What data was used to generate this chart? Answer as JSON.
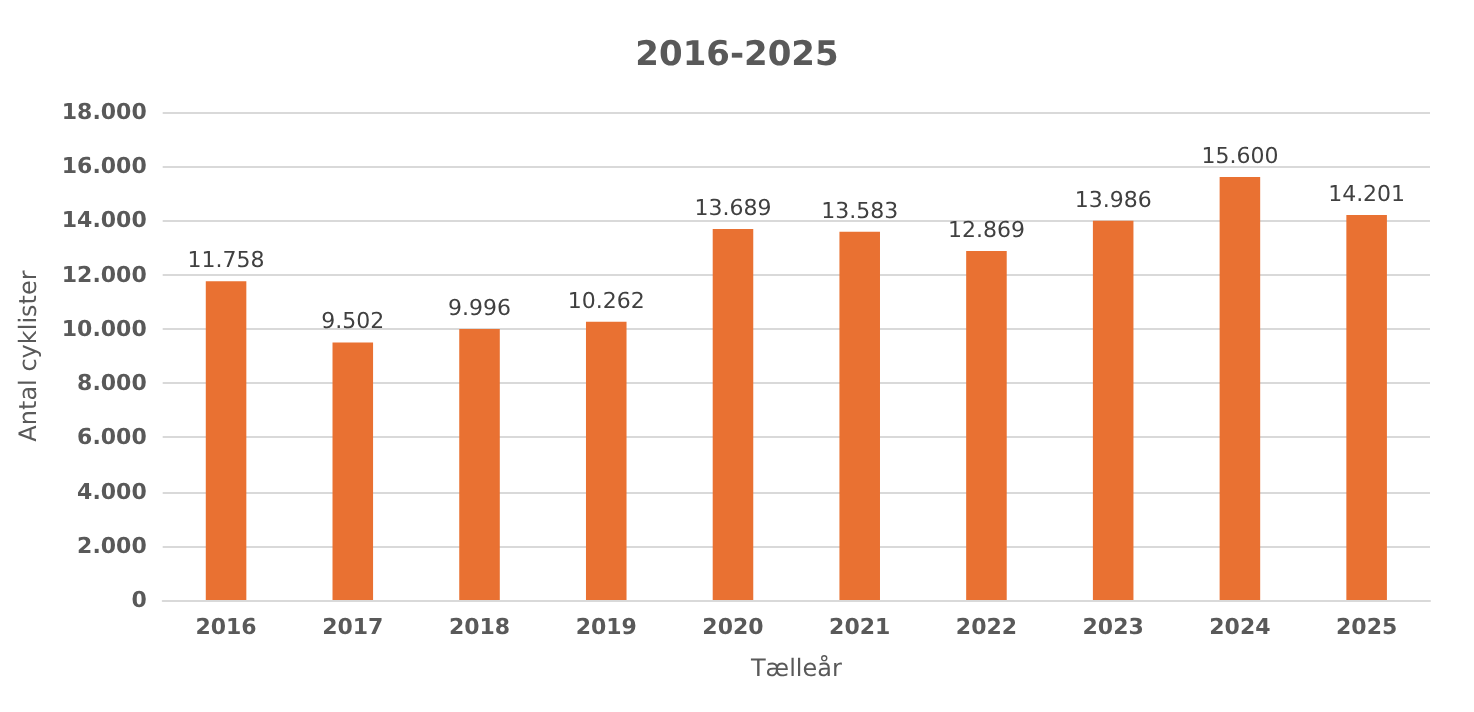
{
  "chart_data": {
    "type": "bar",
    "title": "2016-2025",
    "xlabel": "Tælleår",
    "ylabel": "Antal cyklister",
    "categories": [
      "2016",
      "2017",
      "2018",
      "2019",
      "2020",
      "2021",
      "2022",
      "2023",
      "2024",
      "2025"
    ],
    "series": [
      {
        "color": "#e97132",
        "values": [
          11758,
          9502,
          9996,
          10262,
          13689,
          13583,
          12869,
          13986,
          15600,
          14201
        ],
        "value_labels": [
          "11.758",
          "9.502",
          "9.996",
          "10.262",
          "13.689",
          "13.583",
          "12.869",
          "13.986",
          "15.600",
          "14.201"
        ]
      }
    ],
    "ylim": [
      0,
      18000
    ],
    "yticks": [
      {
        "value": 0,
        "label": "0"
      },
      {
        "value": 2000,
        "label": "2.000"
      },
      {
        "value": 4000,
        "label": "4.000"
      },
      {
        "value": 6000,
        "label": "6.000"
      },
      {
        "value": 8000,
        "label": "8.000"
      },
      {
        "value": 10000,
        "label": "10.000"
      },
      {
        "value": 12000,
        "label": "12.000"
      },
      {
        "value": 14000,
        "label": "14.000"
      },
      {
        "value": 16000,
        "label": "16.000"
      },
      {
        "value": 18000,
        "label": "18.000"
      }
    ],
    "grid": "y"
  }
}
